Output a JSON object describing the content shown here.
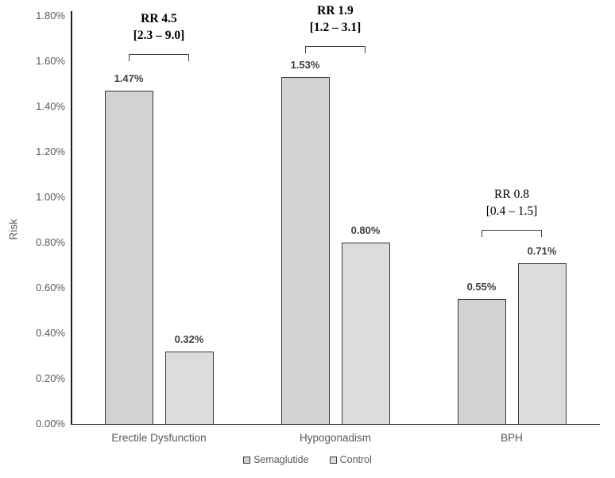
{
  "chart_data": {
    "type": "bar",
    "title": "",
    "xlabel": "",
    "ylabel": "Risk",
    "categories": [
      "Erectile Dysfunction",
      "Hypogonadism",
      "BPH"
    ],
    "series": [
      {
        "name": "Semaglutide",
        "values": [
          1.47,
          1.53,
          0.55
        ],
        "value_labels": [
          "1.47%",
          "1.53%",
          "0.55%"
        ],
        "color": "#d2d2d2"
      },
      {
        "name": "Control",
        "values": [
          0.32,
          0.8,
          0.71
        ],
        "value_labels": [
          "0.32%",
          "0.80%",
          "0.71%"
        ],
        "color": "#dcdcdc"
      }
    ],
    "annotations": [
      {
        "rr": "RR 4.5",
        "ci": "[2.3 – 9.0]",
        "bold": true
      },
      {
        "rr": "RR 1.9",
        "ci": "[1.2 – 3.1]",
        "bold": true
      },
      {
        "rr": "RR 0.8",
        "ci": "[0.4 – 1.5]",
        "bold": false
      }
    ],
    "y_axis": {
      "min": 0,
      "max": 1.8,
      "step": 0.2,
      "tick_labels": [
        "0.00%",
        "0.20%",
        "0.40%",
        "0.60%",
        "0.80%",
        "1.00%",
        "1.20%",
        "1.40%",
        "1.60%",
        "1.80%"
      ]
    },
    "grid": false,
    "legend_position": "bottom",
    "colors": {
      "background": "#ffffff",
      "axis_line": "#1f1f1f",
      "bar_border": "#383838",
      "tick_text": "#595959",
      "value_text": "#3f3f3f",
      "annotation_text": "#000000"
    }
  }
}
